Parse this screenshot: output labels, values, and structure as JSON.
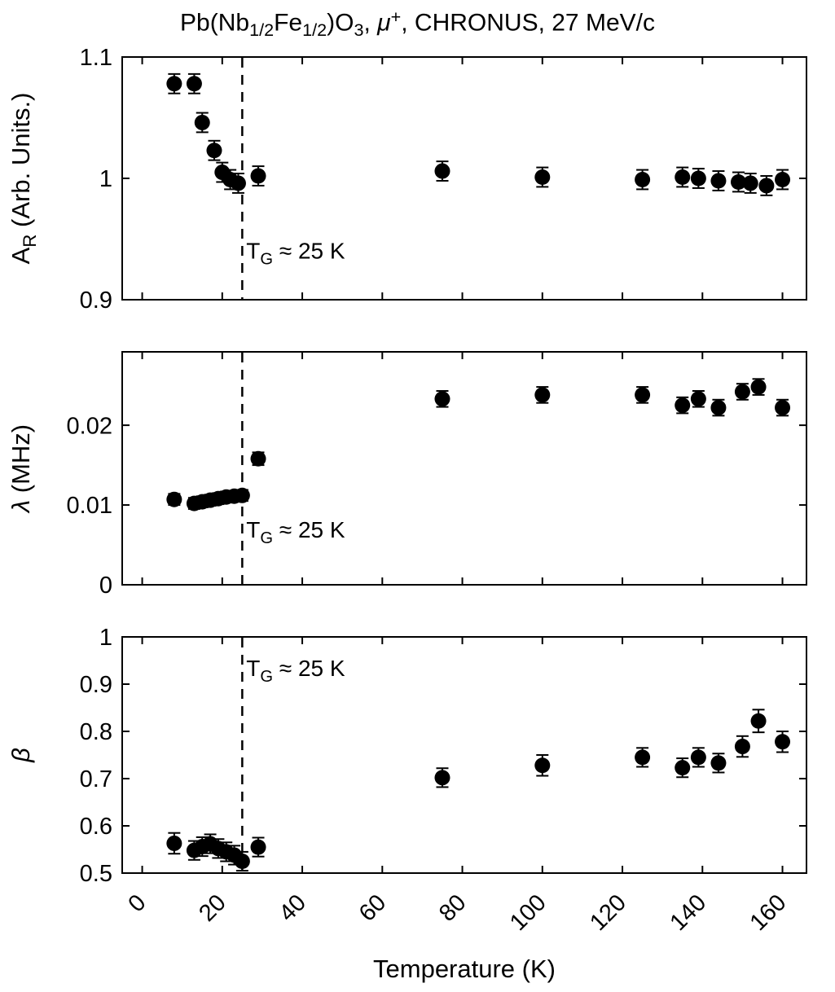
{
  "figure": {
    "title_segments": [
      {
        "t": "Pb(Nb",
        "s": "n"
      },
      {
        "t": "1/2",
        "s": "sub"
      },
      {
        "t": "Fe",
        "s": "n"
      },
      {
        "t": "1/2",
        "s": "sub"
      },
      {
        "t": ")O",
        "s": "n"
      },
      {
        "t": "3",
        "s": "sub"
      },
      {
        "t": ", ",
        "s": "n"
      },
      {
        "t": "μ",
        "s": "i"
      },
      {
        "t": "+",
        "s": "sup"
      },
      {
        "t": ", CHRONUS, 27 MeV/c",
        "s": "n"
      }
    ],
    "xlabel": "Temperature (K)",
    "xticks": [
      0,
      20,
      40,
      60,
      80,
      100,
      120,
      140,
      160
    ],
    "xlim": [
      -5,
      166
    ],
    "colors": {
      "axis": "#000000",
      "marker": "#000000",
      "background": "#ffffff"
    }
  },
  "chart_data": [
    {
      "type": "scatter",
      "name": "asymmetry",
      "ylabel_segments": [
        {
          "t": "A",
          "s": "n"
        },
        {
          "t": "R",
          "s": "sub"
        },
        {
          "t": " (Arb. Units.)",
          "s": "n"
        }
      ],
      "ylim": [
        0.9,
        1.1
      ],
      "yticks": [
        0.9,
        1,
        1.1
      ],
      "ytick_labels": [
        "0.9",
        "1",
        "1.1"
      ],
      "x": [
        8,
        13,
        15,
        18,
        20,
        22,
        24,
        29,
        75,
        100,
        125,
        135,
        139,
        144,
        149,
        152,
        156,
        160
      ],
      "y": [
        1.078,
        1.078,
        1.046,
        1.023,
        1.005,
        0.999,
        0.996,
        1.002,
        1.006,
        1.001,
        0.999,
        1.001,
        1.0,
        0.998,
        0.997,
        0.996,
        0.994,
        0.999
      ],
      "yerr": [
        0.008,
        0.008,
        0.008,
        0.008,
        0.008,
        0.008,
        0.008,
        0.008,
        0.008,
        0.008,
        0.008,
        0.008,
        0.008,
        0.008,
        0.008,
        0.008,
        0.008,
        0.008
      ],
      "vline_x": 25,
      "annotation": {
        "segments": [
          {
            "t": "T",
            "s": "n"
          },
          {
            "t": "G",
            "s": "sub"
          },
          {
            "t": " ≈ 25 K",
            "s": "n"
          }
        ],
        "x": 26,
        "y": 0.934
      }
    },
    {
      "type": "scatter",
      "name": "lambda",
      "ylabel_segments": [
        {
          "t": "λ",
          "s": "i"
        },
        {
          "t": " (MHz)",
          "s": "n"
        }
      ],
      "ylim": [
        0,
        0.0292
      ],
      "yticks": [
        0,
        0.01,
        0.02
      ],
      "ytick_labels": [
        "0",
        "0.01",
        "0.02"
      ],
      "x": [
        8,
        13,
        15,
        17,
        19,
        21,
        23,
        25,
        29,
        75,
        100,
        125,
        135,
        139,
        144,
        150,
        154,
        160
      ],
      "y": [
        0.0107,
        0.0102,
        0.0104,
        0.0106,
        0.0108,
        0.011,
        0.0111,
        0.0112,
        0.0158,
        0.0233,
        0.0238,
        0.0238,
        0.0225,
        0.0233,
        0.0222,
        0.0242,
        0.0248,
        0.0222
      ],
      "yerr": [
        0.0007,
        0.0007,
        0.0007,
        0.0007,
        0.0007,
        0.0007,
        0.0007,
        0.0007,
        0.0008,
        0.001,
        0.001,
        0.001,
        0.001,
        0.001,
        0.001,
        0.001,
        0.001,
        0.001
      ],
      "vline_x": 25,
      "annotation": {
        "segments": [
          {
            "t": "T",
            "s": "n"
          },
          {
            "t": "G",
            "s": "sub"
          },
          {
            "t": " ≈ 25 K",
            "s": "n"
          }
        ],
        "x": 26,
        "y": 0.0059
      }
    },
    {
      "type": "scatter",
      "name": "beta",
      "ylabel_segments": [
        {
          "t": "β",
          "s": "i"
        }
      ],
      "ylim": [
        0.5,
        1
      ],
      "yticks": [
        0.5,
        0.6,
        0.7,
        0.8,
        0.9,
        1
      ],
      "ytick_labels": [
        "0.5",
        "0.6",
        "0.7",
        "0.8",
        "0.9",
        "1"
      ],
      "x": [
        8,
        13,
        15,
        17,
        19,
        21,
        23,
        25,
        29,
        75,
        100,
        125,
        135,
        139,
        144,
        150,
        154,
        160
      ],
      "y": [
        0.563,
        0.548,
        0.556,
        0.562,
        0.552,
        0.545,
        0.538,
        0.525,
        0.555,
        0.702,
        0.728,
        0.745,
        0.723,
        0.745,
        0.733,
        0.768,
        0.822,
        0.778
      ],
      "yerr": [
        0.022,
        0.02,
        0.02,
        0.02,
        0.02,
        0.02,
        0.02,
        0.02,
        0.02,
        0.02,
        0.022,
        0.02,
        0.02,
        0.02,
        0.02,
        0.022,
        0.024,
        0.022
      ],
      "vline_x": 25,
      "annotation": {
        "segments": [
          {
            "t": "T",
            "s": "n"
          },
          {
            "t": "G",
            "s": "sub"
          },
          {
            "t": " ≈ 25 K",
            "s": "n"
          }
        ],
        "x": 26,
        "y": 0.917
      }
    }
  ]
}
